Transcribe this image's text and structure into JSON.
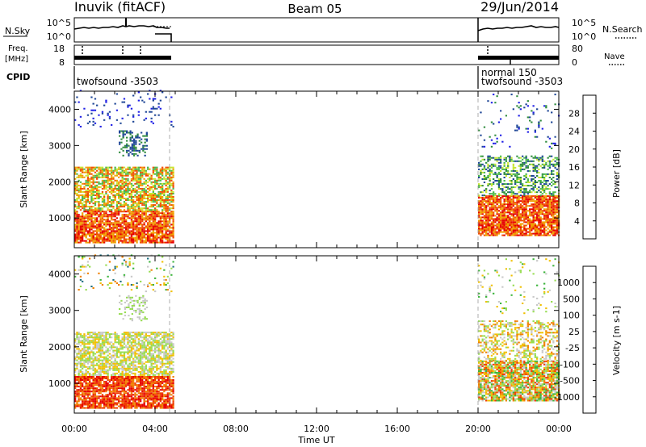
{
  "header": {
    "station": "Inuvik (fitACF)",
    "beam": "Beam 05",
    "date": "29/Jun/2014"
  },
  "noise_panel": {
    "left_label": "N.Sky",
    "right_label": "N.Search",
    "left_ticks": [
      "10^5",
      "10^0"
    ],
    "right_ticks": [
      "10^5",
      "10^0"
    ]
  },
  "freq_panel": {
    "left_label_1": "Freq.",
    "left_label_2": "[MHz]",
    "right_label": "Nave",
    "left_ticks": [
      "18",
      "8"
    ],
    "right_ticks": [
      "80",
      "0"
    ]
  },
  "cpid_panel": {
    "label": "CPID",
    "modes": [
      "twofsound -3503",
      "normal 150",
      "twofsound -3503"
    ]
  },
  "time_axis": {
    "label": "Time UT",
    "ticks": [
      "00:00",
      "04:00",
      "08:00",
      "12:00",
      "16:00",
      "20:00",
      "00:00"
    ]
  },
  "chart_data": [
    {
      "type": "heatmap",
      "title": "",
      "xlabel": "Time UT",
      "ylabel": "Slant Range [km]",
      "xlim": [
        0,
        24
      ],
      "ylim": [
        180,
        4500
      ],
      "yticks": [
        1000,
        2000,
        3000,
        4000
      ],
      "data_periods_ut_hours": [
        [
          0,
          4.9
        ],
        [
          20,
          24
        ]
      ],
      "colorbar": {
        "label": "Power [dB]",
        "ticks": [
          "4",
          "8",
          "12",
          "16",
          "20",
          "24",
          "28"
        ],
        "colors": [
          "#1e1ee6",
          "#1e4696",
          "#2e8b3c",
          "#4cb84c",
          "#c8e632",
          "#f0a000",
          "#f05000",
          "#e60000"
        ]
      }
    },
    {
      "type": "heatmap",
      "title": "",
      "xlabel": "Time UT",
      "ylabel": "Slant Range [km]",
      "xlim": [
        0,
        24
      ],
      "ylim": [
        180,
        4500
      ],
      "yticks": [
        1000,
        2000,
        3000,
        4000
      ],
      "data_periods_ut_hours": [
        [
          0,
          4.9
        ],
        [
          20,
          24
        ]
      ],
      "colorbar": {
        "label": "Velocity [m s-1]",
        "ticks": [
          "1000",
          "500",
          "100",
          "25",
          "-25",
          "-100",
          "-500",
          "-1000"
        ],
        "colors": [
          "#1e32c8",
          "#1e7080",
          "#3cb43c",
          "#96dc50",
          "#c8c8c8",
          "#f0c000",
          "#f08000",
          "#f03c00",
          "#e60000"
        ]
      }
    }
  ]
}
